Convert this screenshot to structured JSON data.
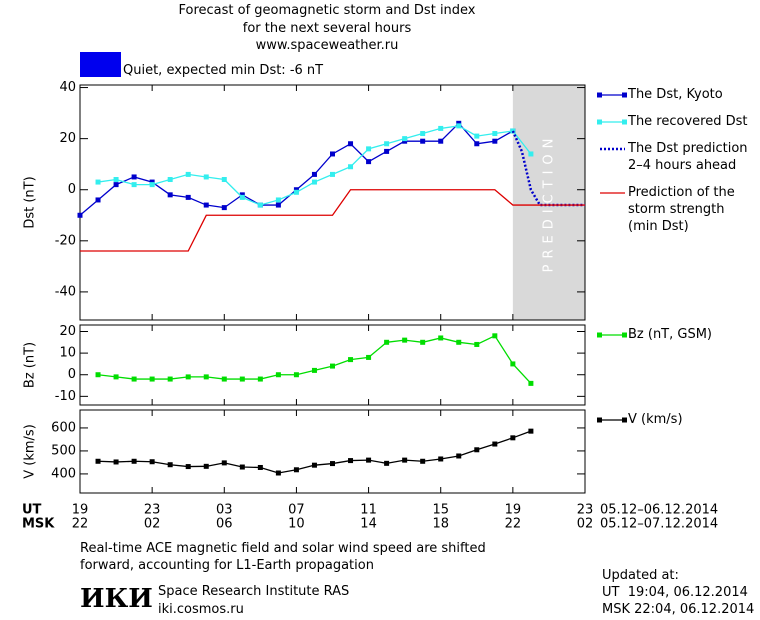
{
  "title_lines": [
    "Forecast of geomagnetic storm and Dst index",
    "for the next several hours",
    "www.spaceweather.ru"
  ],
  "status": {
    "text": "Quiet, expected min Dst: -6 nT",
    "color": "#0000ee"
  },
  "chart_data": [
    {
      "type": "line",
      "ylabel": "Dst (nT)",
      "ylim": [
        -51,
        41
      ],
      "yticks": [
        -40,
        -20,
        0,
        20,
        40
      ],
      "xlim": [
        0,
        28
      ],
      "xticks": [
        {
          "value": 0,
          "label": "19"
        },
        {
          "value": 4,
          "label": "23"
        },
        {
          "value": 8,
          "label": "03"
        },
        {
          "value": 12,
          "label": "07"
        },
        {
          "value": 16,
          "label": "11"
        },
        {
          "value": 20,
          "label": "15"
        },
        {
          "value": 24,
          "label": "19"
        },
        {
          "value": 28,
          "label": "23"
        }
      ],
      "prediction_band": [
        24,
        28
      ],
      "prediction_label": "PREDICTION",
      "series": [
        {
          "name": "The Dst, Kyoto",
          "color": "#0000cc",
          "markers": true,
          "dotted": false,
          "x": [
            0,
            1,
            2,
            3,
            4,
            5,
            6,
            7,
            8,
            9,
            10,
            11,
            12,
            13,
            14,
            15,
            16,
            17,
            18,
            19,
            20,
            21,
            22,
            23,
            24
          ],
          "values": [
            -10,
            -4,
            2,
            5,
            3,
            -2,
            -3,
            -6,
            -7,
            -2,
            -6,
            -6,
            0,
            6,
            14,
            18,
            11,
            15,
            19,
            19,
            19,
            26,
            18,
            19,
            23
          ]
        },
        {
          "name": "The recovered Dst",
          "color": "#33eeee",
          "markers": true,
          "dotted": false,
          "x": [
            1,
            2,
            3,
            4,
            5,
            6,
            7,
            8,
            9,
            10,
            11,
            12,
            13,
            14,
            15,
            16,
            17,
            18,
            19,
            20,
            21,
            22,
            23,
            24,
            25
          ],
          "values": [
            3,
            4,
            2,
            2,
            4,
            6,
            5,
            4,
            -3,
            -6,
            -4,
            -1,
            3,
            6,
            9,
            16,
            18,
            20,
            22,
            24,
            25,
            21,
            22,
            23,
            14
          ]
        },
        {
          "name": "The Dst prediction\n2–4 hours ahead",
          "color": "#0000cc",
          "markers": false,
          "dotted": true,
          "x": [
            24,
            24.5,
            25,
            25.5,
            28
          ],
          "values": [
            23,
            15,
            0,
            -6,
            -6
          ]
        },
        {
          "name": "Prediction of the\nstorm strength\n(min Dst)",
          "color": "#dd0000",
          "markers": false,
          "dotted": false,
          "x": [
            0,
            6,
            7,
            14,
            15,
            23,
            24,
            28
          ],
          "values": [
            -24,
            -24,
            -10,
            -10,
            0,
            0,
            -6,
            -6
          ]
        }
      ]
    },
    {
      "type": "line",
      "ylabel": "Bz (nT)",
      "ylim": [
        -14,
        23
      ],
      "yticks": [
        -10,
        0,
        10,
        20
      ],
      "xlim": [
        0,
        28
      ],
      "xticks": [
        {
          "value": 0,
          "label": "19"
        },
        {
          "value": 4,
          "label": "23"
        },
        {
          "value": 8,
          "label": "03"
        },
        {
          "value": 12,
          "label": "07"
        },
        {
          "value": 16,
          "label": "11"
        },
        {
          "value": 20,
          "label": "15"
        },
        {
          "value": 24,
          "label": "19"
        },
        {
          "value": 28,
          "label": "23"
        }
      ],
      "series": [
        {
          "name": "Bz (nT, GSM)",
          "color": "#00dd00",
          "markers": true,
          "dotted": false,
          "x": [
            1,
            2,
            3,
            4,
            5,
            6,
            7,
            8,
            9,
            10,
            11,
            12,
            13,
            14,
            15,
            16,
            17,
            18,
            19,
            20,
            21,
            22,
            23,
            24,
            25
          ],
          "values": [
            0,
            -1,
            -2,
            -2,
            -2,
            -1,
            -1,
            -2,
            -2,
            -2,
            0,
            0,
            2,
            4,
            7,
            8,
            15,
            16,
            15,
            17,
            15,
            14,
            18,
            5,
            -4
          ]
        }
      ]
    },
    {
      "type": "line",
      "ylabel": "V (km/s)",
      "ylim": [
        317,
        678
      ],
      "yticks": [
        400,
        500,
        600
      ],
      "xlim": [
        0,
        28
      ],
      "xticks": [
        {
          "value": 0,
          "label": "19"
        },
        {
          "value": 4,
          "label": "23"
        },
        {
          "value": 8,
          "label": "03"
        },
        {
          "value": 12,
          "label": "07"
        },
        {
          "value": 16,
          "label": "11"
        },
        {
          "value": 20,
          "label": "15"
        },
        {
          "value": 24,
          "label": "19"
        },
        {
          "value": 28,
          "label": "23"
        }
      ],
      "xticks_msk": [
        {
          "value": 0,
          "label": "22"
        },
        {
          "value": 4,
          "label": "02"
        },
        {
          "value": 8,
          "label": "06"
        },
        {
          "value": 12,
          "label": "10"
        },
        {
          "value": 16,
          "label": "14"
        },
        {
          "value": 20,
          "label": "18"
        },
        {
          "value": 24,
          "label": "22"
        },
        {
          "value": 28,
          "label": "02"
        }
      ],
      "xlabel_ut": "UT",
      "xlabel_msk": "MSK",
      "range_ut": "05.12–06.12.2014",
      "range_msk": "05.12–07.12.2014",
      "series": [
        {
          "name": "V (km/s)",
          "color": "#000000",
          "markers": true,
          "dotted": false,
          "x": [
            1,
            2,
            3,
            4,
            5,
            6,
            7,
            8,
            9,
            10,
            11,
            12,
            13,
            14,
            15,
            16,
            17,
            18,
            19,
            20,
            21,
            22,
            23,
            24,
            25
          ],
          "values": [
            455,
            452,
            455,
            453,
            440,
            432,
            433,
            448,
            430,
            428,
            404,
            418,
            438,
            445,
            458,
            460,
            446,
            460,
            455,
            465,
            478,
            505,
            530,
            557,
            586
          ]
        }
      ]
    }
  ],
  "note": [
    "Real-time ACE magnetic field and solar wind speed are shifted",
    "forward, accounting for L1-Earth propagation"
  ],
  "institute": {
    "logo": "ИКИ",
    "name": "Space Research Institute RAS",
    "url": "iki.cosmos.ru"
  },
  "updated": [
    "Updated at:",
    "UT  19:04, 06.12.2014",
    "MSK 22:04, 06.12.2014"
  ]
}
